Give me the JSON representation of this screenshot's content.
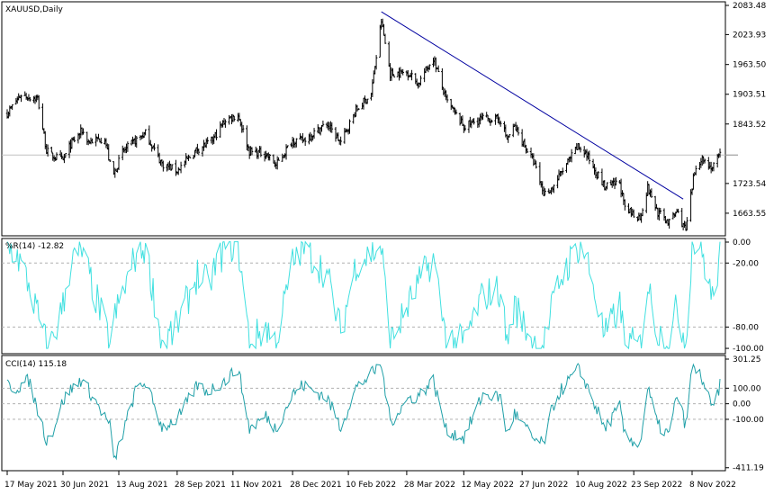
{
  "chart_data": [
    {
      "type": "bar",
      "title": "XAUUSD,Daily",
      "subtype": "OHLC bars",
      "ylim": [
        1618.0,
        2090.0
      ],
      "y_ticks": [
        "2083.48",
        "2023.93",
        "1963.50",
        "1903.51",
        "1843.52",
        "1723.54",
        "1663.55"
      ],
      "y_tick_values": [
        2083.48,
        2023.93,
        1963.5,
        1903.51,
        1843.52,
        1723.54,
        1663.55
      ],
      "current_price": 1781,
      "grid": false,
      "close_keypoints": {
        "x": [
          "2021-05-17",
          "2021-05-28",
          "2021-06-03",
          "2021-06-10",
          "2021-06-17",
          "2021-06-21",
          "2021-06-30",
          "2021-07-06",
          "2021-07-15",
          "2021-07-20",
          "2021-08-02",
          "2021-08-06",
          "2021-08-09",
          "2021-08-16",
          "2021-08-27",
          "2021-09-03",
          "2021-09-16",
          "2021-09-28",
          "2021-10-14",
          "2021-10-25",
          "2021-11-05",
          "2021-11-15",
          "2021-11-24",
          "2021-12-07",
          "2021-12-15",
          "2021-12-28",
          "2022-01-05",
          "2022-01-24",
          "2022-02-04",
          "2022-02-16",
          "2022-02-28",
          "2022-03-08",
          "2022-03-15",
          "2022-03-29",
          "2022-04-06",
          "2022-04-18",
          "2022-04-28",
          "2022-05-12",
          "2022-05-27",
          "2022-06-10",
          "2022-06-15",
          "2022-06-21",
          "2022-07-06",
          "2022-07-14",
          "2022-07-21",
          "2022-07-27",
          "2022-08-10",
          "2022-08-16",
          "2022-08-31",
          "2022-09-12",
          "2022-09-16",
          "2022-09-28",
          "2022-10-04",
          "2022-10-12",
          "2022-10-21",
          "2022-10-27",
          "2022-11-03",
          "2022-11-10",
          "2022-11-15",
          "2022-11-24",
          "2022-11-30"
        ],
        "y": [
          1865,
          1903,
          1898,
          1895,
          1790,
          1780,
          1770,
          1802,
          1830,
          1808,
          1815,
          1762,
          1742,
          1787,
          1812,
          1825,
          1763,
          1750,
          1793,
          1808,
          1852,
          1862,
          1788,
          1784,
          1760,
          1811,
          1810,
          1844,
          1806,
          1871,
          1905,
          2052,
          1945,
          1948,
          1925,
          1978,
          1892,
          1838,
          1855,
          1852,
          1813,
          1838,
          1767,
          1703,
          1715,
          1742,
          1798,
          1785,
          1716,
          1725,
          1670,
          1655,
          1715,
          1665,
          1645,
          1668,
          1628,
          1748,
          1775,
          1755,
          1781
        ]
      },
      "trendline": {
        "from": [
          "2022-03-08",
          2070
        ],
        "to": [
          "2022-11-01",
          1692
        ]
      }
    },
    {
      "type": "line",
      "title": "%R(14) -12.82",
      "ylim": [
        -105,
        3
      ],
      "y_ticks": [
        "0.00",
        "-20.00",
        "-80.00",
        "-100.00"
      ],
      "y_tick_values": [
        0,
        -20,
        -80,
        -100
      ],
      "levels": [
        -20,
        -80
      ],
      "color": "#40e0e0",
      "keypoints": {
        "x": [
          "2021-05-17",
          "2021-05-24",
          "2021-06-03",
          "2021-06-17",
          "2021-06-21",
          "2021-06-30",
          "2021-07-06",
          "2021-07-15",
          "2021-08-06",
          "2021-08-10",
          "2021-08-27",
          "2021-09-03",
          "2021-09-16",
          "2021-09-28",
          "2021-10-14",
          "2021-10-22",
          "2021-11-05",
          "2021-11-15",
          "2021-11-24",
          "2021-12-07",
          "2021-12-15",
          "2021-12-28",
          "2022-01-05",
          "2022-01-24",
          "2022-02-04",
          "2022-02-16",
          "2022-03-08",
          "2022-03-15",
          "2022-03-29",
          "2022-04-06",
          "2022-04-18",
          "2022-04-28",
          "2022-05-12",
          "2022-05-27",
          "2022-06-10",
          "2022-06-15",
          "2022-06-21",
          "2022-07-06",
          "2022-07-14",
          "2022-07-21",
          "2022-07-27",
          "2022-08-10",
          "2022-08-16",
          "2022-08-31",
          "2022-09-12",
          "2022-09-16",
          "2022-09-28",
          "2022-10-04",
          "2022-10-12",
          "2022-10-21",
          "2022-10-27",
          "2022-11-03",
          "2022-11-08",
          "2022-11-15",
          "2022-11-24",
          "2022-11-30"
        ],
        "y": [
          -5,
          -10,
          -40,
          -97,
          -95,
          -60,
          -20,
          -10,
          -95,
          -70,
          -10,
          -5,
          -95,
          -80,
          -30,
          -40,
          -5,
          -2,
          -95,
          -80,
          -95,
          -20,
          -5,
          -30,
          -85,
          -20,
          -5,
          -95,
          -60,
          -40,
          -15,
          -90,
          -95,
          -50,
          -45,
          -95,
          -60,
          -95,
          -98,
          -60,
          -35,
          -5,
          -10,
          -90,
          -60,
          -95,
          -98,
          -40,
          -85,
          -95,
          -60,
          -95,
          -2,
          -5,
          -55,
          -12.82
        ]
      }
    },
    {
      "type": "line",
      "title": "CCI(14) 115.18",
      "ylim": [
        -430,
        310
      ],
      "y_ticks": [
        "301.25",
        "100.00",
        "0.00",
        "-100.00",
        "-411.19"
      ],
      "y_tick_values": [
        301.25,
        100,
        0,
        -100,
        -411.19
      ],
      "levels": [
        100,
        0,
        -100
      ],
      "color": "#20a0a8",
      "keypoints": {
        "x": [
          "2021-05-17",
          "2021-05-24",
          "2021-06-03",
          "2021-06-17",
          "2021-06-21",
          "2021-06-30",
          "2021-07-06",
          "2021-07-15",
          "2021-08-06",
          "2021-08-09",
          "2021-08-27",
          "2021-09-03",
          "2021-09-16",
          "2021-09-28",
          "2021-10-14",
          "2021-10-22",
          "2021-11-05",
          "2021-11-15",
          "2021-11-24",
          "2021-12-07",
          "2021-12-15",
          "2021-12-28",
          "2022-01-05",
          "2022-01-24",
          "2022-02-04",
          "2022-02-16",
          "2022-03-08",
          "2022-03-15",
          "2022-03-29",
          "2022-04-06",
          "2022-04-18",
          "2022-04-28",
          "2022-05-12",
          "2022-05-27",
          "2022-06-10",
          "2022-06-15",
          "2022-06-21",
          "2022-07-06",
          "2022-07-14",
          "2022-07-21",
          "2022-07-27",
          "2022-08-10",
          "2022-08-16",
          "2022-08-31",
          "2022-09-12",
          "2022-09-16",
          "2022-09-28",
          "2022-10-04",
          "2022-10-12",
          "2022-10-21",
          "2022-10-27",
          "2022-11-03",
          "2022-11-08",
          "2022-11-15",
          "2022-11-24",
          "2022-11-30"
        ],
        "y": [
          120,
          100,
          150,
          -230,
          -200,
          20,
          90,
          160,
          -140,
          -380,
          100,
          140,
          -150,
          -100,
          120,
          80,
          150,
          230,
          -160,
          -80,
          -160,
          60,
          120,
          40,
          -150,
          100,
          250,
          -120,
          30,
          50,
          150,
          -170,
          -220,
          60,
          40,
          -200,
          -60,
          -230,
          -260,
          -20,
          80,
          220,
          140,
          -160,
          -20,
          -210,
          -260,
          100,
          -140,
          -200,
          60,
          -140,
          230,
          180,
          -40,
          115.18
        ]
      }
    }
  ],
  "time_axis": {
    "labels": [
      "17 May 2021",
      "30 Jun 2021",
      "13 Aug 2021",
      "28 Sep 2021",
      "11 Nov 2021",
      "28 Dec 2021",
      "10 Feb 2022",
      "28 Mar 2022",
      "12 May 2022",
      "27 Jun 2022",
      "10 Aug 2022",
      "23 Sep 2022",
      "8 Nov 2022"
    ],
    "dates": [
      "2021-05-17",
      "2021-06-30",
      "2021-08-13",
      "2021-09-28",
      "2021-11-11",
      "2021-12-28",
      "2022-02-10",
      "2022-03-28",
      "2022-05-12",
      "2022-06-27",
      "2022-08-10",
      "2022-09-23",
      "2022-11-08"
    ],
    "range": [
      "2021-05-17",
      "2022-11-30"
    ]
  },
  "colors": {
    "bars": "#000000",
    "trendline": "#0000a0",
    "price_line": "#c0c0c0",
    "wpr": "#40e0e0",
    "cci": "#20a0a8",
    "levels": "#b0b0b0"
  }
}
